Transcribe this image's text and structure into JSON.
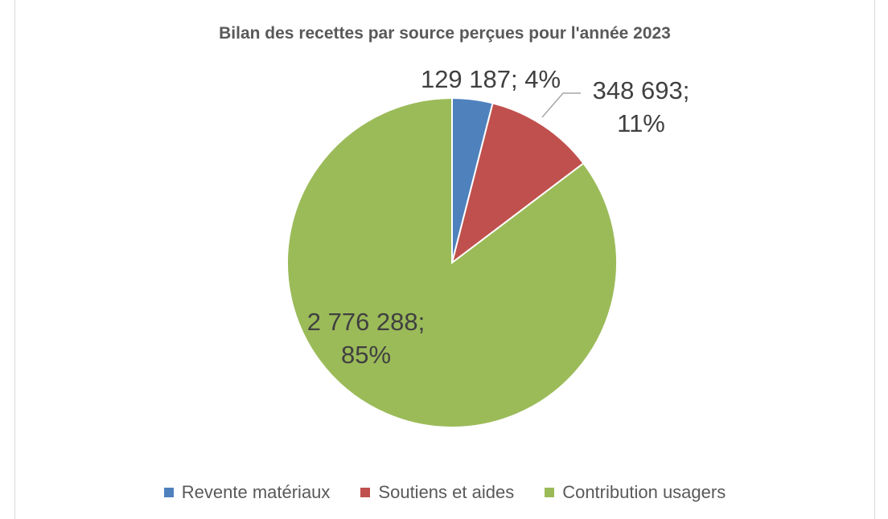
{
  "chart_data": {
    "type": "pie",
    "title": "Bilan des recettes par source perçues pour l'année 2023",
    "categories": [
      "Revente matériaux",
      "Soutiens et aides",
      "Contribution usagers"
    ],
    "values": [
      129187,
      348693,
      2776288
    ],
    "value_labels": [
      "129 187; 4%",
      "348 693; 11%",
      "2 776 288; 85%"
    ],
    "colors": [
      "#4f81bd",
      "#c0504d",
      "#9bbb59"
    ],
    "legend": "bottom"
  }
}
